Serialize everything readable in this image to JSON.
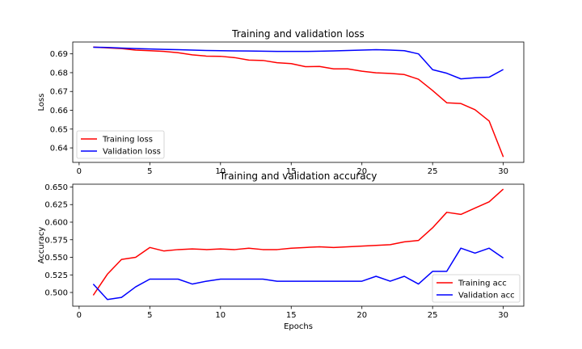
{
  "figure": {
    "background": "#ffffff"
  },
  "chart_data": [
    {
      "type": "line",
      "title": "Training and validation loss",
      "xlabel": "",
      "ylabel": "Loss",
      "xlim": [
        -0.45,
        31.45
      ],
      "ylim": [
        0.6323,
        0.6963
      ],
      "xticks": [
        0,
        5,
        10,
        15,
        20,
        25,
        30
      ],
      "xtick_labels": [
        "0",
        "5",
        "10",
        "15",
        "20",
        "25",
        "30"
      ],
      "yticks": [
        0.64,
        0.65,
        0.66,
        0.67,
        0.68,
        0.69
      ],
      "ytick_labels": [
        "0.64",
        "0.65",
        "0.66",
        "0.67",
        "0.68",
        "0.69"
      ],
      "grid": false,
      "legend_position": "lower-left",
      "x": [
        1,
        2,
        3,
        4,
        5,
        6,
        7,
        8,
        9,
        10,
        11,
        12,
        13,
        14,
        15,
        16,
        17,
        18,
        19,
        20,
        21,
        22,
        23,
        24,
        25,
        26,
        27,
        28,
        29,
        30
      ],
      "series": [
        {
          "name": "Training loss",
          "color": "#ff0000",
          "values": [
            0.6936,
            0.6932,
            0.6928,
            0.692,
            0.6917,
            0.6913,
            0.6906,
            0.6895,
            0.6888,
            0.6887,
            0.688,
            0.6867,
            0.6865,
            0.6853,
            0.6848,
            0.6832,
            0.6833,
            0.682,
            0.682,
            0.6808,
            0.6799,
            0.6796,
            0.679,
            0.6765,
            0.6705,
            0.664,
            0.6636,
            0.6603,
            0.6543,
            0.6352
          ]
        },
        {
          "name": "Validation loss",
          "color": "#0000ff",
          "values": [
            0.6935,
            0.6934,
            0.6931,
            0.6928,
            0.6926,
            0.6924,
            0.6922,
            0.692,
            0.6918,
            0.6917,
            0.6916,
            0.6915,
            0.6914,
            0.6913,
            0.6913,
            0.6913,
            0.6914,
            0.6916,
            0.6918,
            0.692,
            0.6922,
            0.692,
            0.6917,
            0.69,
            0.6816,
            0.6797,
            0.6767,
            0.6773,
            0.6776,
            0.6817
          ]
        }
      ]
    },
    {
      "type": "line",
      "title": "Training and validation accuracy",
      "xlabel": "Epochs",
      "ylabel": "Accuracy",
      "xlim": [
        -0.45,
        31.45
      ],
      "ylim": [
        0.4805,
        0.654
      ],
      "xticks": [
        0,
        5,
        10,
        15,
        20,
        25,
        30
      ],
      "xtick_labels": [
        "0",
        "5",
        "10",
        "15",
        "20",
        "25",
        "30"
      ],
      "yticks": [
        0.5,
        0.525,
        0.55,
        0.575,
        0.6,
        0.625,
        0.65
      ],
      "ytick_labels": [
        "0.500",
        "0.525",
        "0.550",
        "0.575",
        "0.600",
        "0.625",
        "0.650"
      ],
      "grid": false,
      "legend_position": "lower-right",
      "x": [
        1,
        2,
        3,
        4,
        5,
        6,
        7,
        8,
        9,
        10,
        11,
        12,
        13,
        14,
        15,
        16,
        17,
        18,
        19,
        20,
        21,
        22,
        23,
        24,
        25,
        26,
        27,
        28,
        29,
        30
      ],
      "series": [
        {
          "name": "Training acc",
          "color": "#ff0000",
          "values": [
            0.496,
            0.526,
            0.547,
            0.55,
            0.564,
            0.559,
            0.561,
            0.562,
            0.561,
            0.562,
            0.561,
            0.563,
            0.561,
            0.561,
            0.563,
            0.564,
            0.565,
            0.564,
            0.565,
            0.566,
            0.567,
            0.568,
            0.572,
            0.574,
            0.592,
            0.614,
            0.611,
            0.62,
            0.629,
            0.647
          ]
        },
        {
          "name": "Validation acc",
          "color": "#0000ff",
          "values": [
            0.512,
            0.49,
            0.493,
            0.508,
            0.519,
            0.519,
            0.519,
            0.512,
            0.516,
            0.519,
            0.519,
            0.519,
            0.519,
            0.516,
            0.516,
            0.516,
            0.516,
            0.516,
            0.516,
            0.516,
            0.523,
            0.516,
            0.523,
            0.512,
            0.53,
            0.53,
            0.563,
            0.556,
            0.563,
            0.549
          ]
        }
      ]
    }
  ]
}
